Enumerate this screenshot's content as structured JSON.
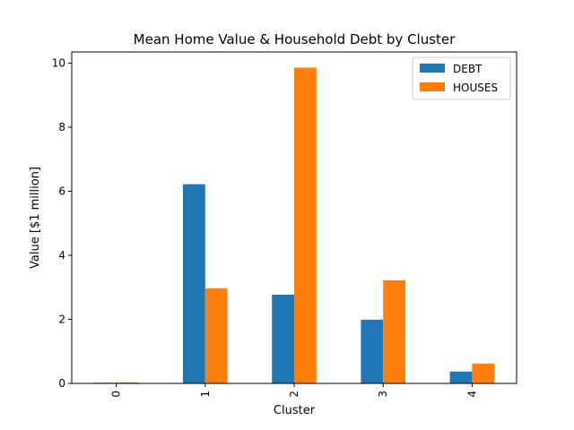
{
  "chart_data": {
    "type": "bar",
    "title": "Mean Home Value & Household Debt by Cluster",
    "xlabel": "Cluster",
    "ylabel": "Value [$1 million]",
    "categories": [
      "0",
      "1",
      "2",
      "3",
      "4"
    ],
    "ylim": [
      0,
      10.35
    ],
    "yticks": [
      0,
      2,
      4,
      6,
      8,
      10
    ],
    "grid": false,
    "legend_position": "upper right",
    "series": [
      {
        "name": "DEBT",
        "color": "#1f77b4",
        "values": [
          0.02,
          6.22,
          2.77,
          1.99,
          0.37
        ]
      },
      {
        "name": "HOUSES",
        "color": "#ff7f0e",
        "values": [
          0.03,
          2.97,
          9.86,
          3.22,
          0.62
        ]
      }
    ]
  }
}
